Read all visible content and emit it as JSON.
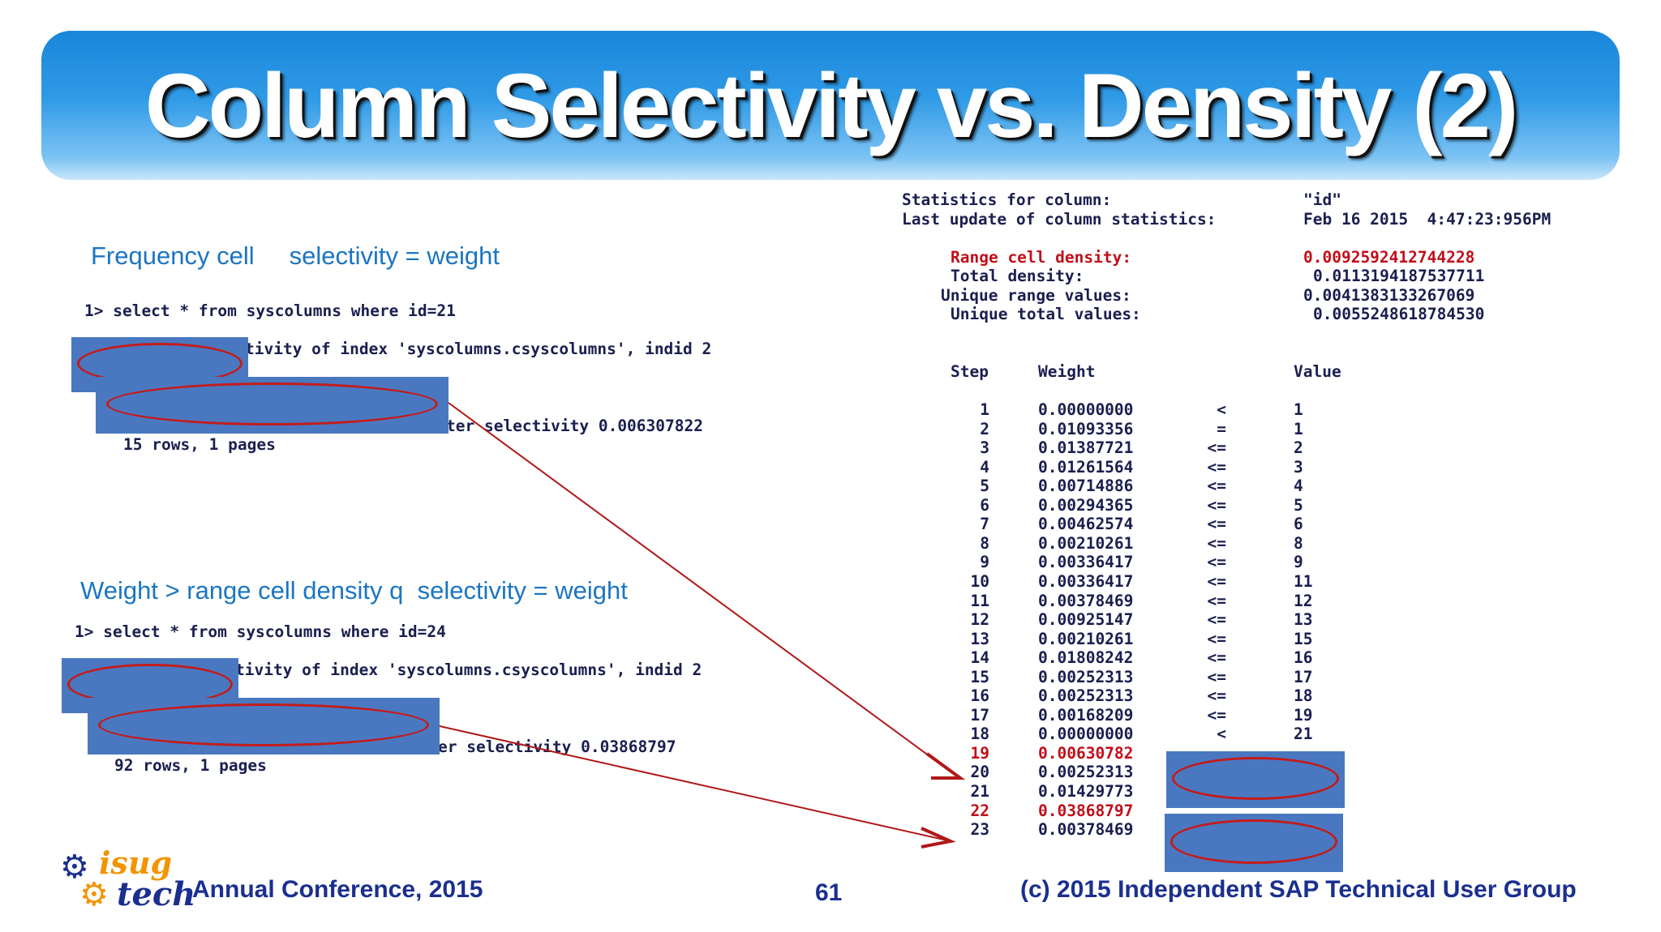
{
  "title": "Column Selectivity vs. Density (2)",
  "left": {
    "block1": {
      "heading": "Frequency cell     selectivity = weight",
      "query": "1> select * from syscolumns where id=21",
      "line_partial": "tivity of index 'syscolumns.csyscolumns', indid 2",
      "selectivity_partial": "ter selectivity 0.006307822",
      "rows": "15 rows, 1 pages"
    },
    "block2": {
      "heading": "Weight > range cell density q  selectivity = weight",
      "query": "1> select * from syscolumns where id=24",
      "line_partial": "tivity of index 'syscolumns.csyscolumns', indid 2",
      "selectivity_partial": "er selectivity 0.03868797",
      "rows": "92 rows, 1 pages"
    }
  },
  "stats": {
    "label_column": "Statistics for column:",
    "value_column": "\"id\"",
    "label_update": "Last update of column statistics:",
    "value_update": "Feb 16 2015  4:47:23:956PM",
    "range_cell_density_label": "Range cell density:",
    "range_cell_density_value": "0.0092592412744228",
    "total_density_label": "Total density:",
    "total_density_value": "0.0113194187537711",
    "unique_range_label": "Unique range values:",
    "unique_range_value": "0.0041383133267069",
    "unique_total_label": "Unique total values:",
    "unique_total_value": "0.0055248618784530"
  },
  "histogram": {
    "headers": {
      "step": "Step",
      "weight": "Weight",
      "value": "Value"
    },
    "rows": [
      {
        "step": "1",
        "weight": "0.00000000",
        "op": "<",
        "value": "1",
        "highlight": false
      },
      {
        "step": "2",
        "weight": "0.01093356",
        "op": "=",
        "value": "1",
        "highlight": false
      },
      {
        "step": "3",
        "weight": "0.01387721",
        "op": "<=",
        "value": "2",
        "highlight": false
      },
      {
        "step": "4",
        "weight": "0.01261564",
        "op": "<=",
        "value": "3",
        "highlight": false
      },
      {
        "step": "5",
        "weight": "0.00714886",
        "op": "<=",
        "value": "4",
        "highlight": false
      },
      {
        "step": "6",
        "weight": "0.00294365",
        "op": "<=",
        "value": "5",
        "highlight": false
      },
      {
        "step": "7",
        "weight": "0.00462574",
        "op": "<=",
        "value": "6",
        "highlight": false
      },
      {
        "step": "8",
        "weight": "0.00210261",
        "op": "<=",
        "value": "8",
        "highlight": false
      },
      {
        "step": "9",
        "weight": "0.00336417",
        "op": "<=",
        "value": "9",
        "highlight": false
      },
      {
        "step": "10",
        "weight": "0.00336417",
        "op": "<=",
        "value": "11",
        "highlight": false
      },
      {
        "step": "11",
        "weight": "0.00378469",
        "op": "<=",
        "value": "12",
        "highlight": false
      },
      {
        "step": "12",
        "weight": "0.00925147",
        "op": "<=",
        "value": "13",
        "highlight": false
      },
      {
        "step": "13",
        "weight": "0.00210261",
        "op": "<=",
        "value": "15",
        "highlight": false
      },
      {
        "step": "14",
        "weight": "0.01808242",
        "op": "<=",
        "value": "16",
        "highlight": false
      },
      {
        "step": "15",
        "weight": "0.00252313",
        "op": "<=",
        "value": "17",
        "highlight": false
      },
      {
        "step": "16",
        "weight": "0.00252313",
        "op": "<=",
        "value": "18",
        "highlight": false
      },
      {
        "step": "17",
        "weight": "0.00168209",
        "op": "<=",
        "value": "19",
        "highlight": false
      },
      {
        "step": "18",
        "weight": "0.00000000",
        "op": "<",
        "value": "21",
        "highlight": false
      },
      {
        "step": "19",
        "weight": "0.00630782",
        "op": "",
        "value": "",
        "highlight": true
      },
      {
        "step": "20",
        "weight": "0.00252313",
        "op": "",
        "value": "",
        "highlight": false
      },
      {
        "step": "21",
        "weight": "0.01429773",
        "op": "",
        "value": "",
        "highlight": false
      },
      {
        "step": "22",
        "weight": "0.03868797",
        "op": "",
        "value": "",
        "highlight": true
      },
      {
        "step": "23",
        "weight": "0.00378469",
        "op": "",
        "value": "",
        "highlight": false
      }
    ]
  },
  "footer": {
    "logo_word1": "isug",
    "logo_word2": "tech",
    "conference": "Annual Conference, 2015",
    "page_number": "61",
    "copyright": "(c) 2015 Independent SAP Technical User Group"
  },
  "colors": {
    "banner": "#2f9ae6",
    "heading_blue": "#1b75c2",
    "mono_text": "#1a1f4f",
    "highlight_red": "#c0101a",
    "cover_blue": "#4a78c0",
    "logo_orange": "#f29400"
  }
}
